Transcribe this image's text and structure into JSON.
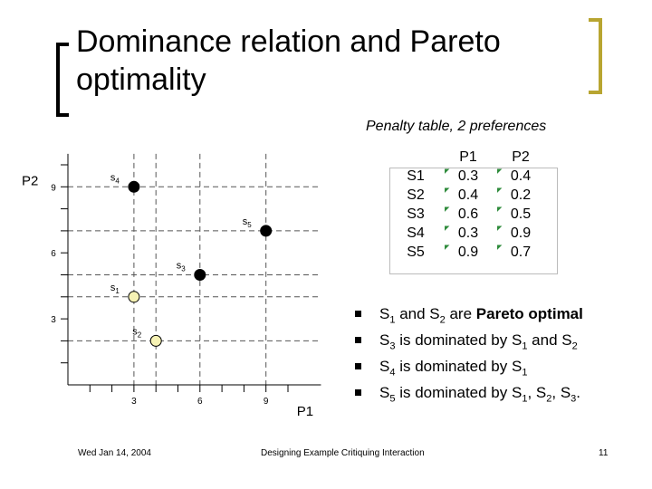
{
  "slide": {
    "title": "Dominance relation and Pareto optimality",
    "subtitle": "Penalty table, 2 preferences",
    "footer_date": "Wed Jan 14, 2004",
    "footer_center": "Designing Example Critiquing Interaction",
    "page_number": "11"
  },
  "penalty_table": {
    "headers": [
      "",
      "P1",
      "P2"
    ],
    "rows": [
      {
        "label": "S1",
        "p1": "0.3",
        "p2": "0.4"
      },
      {
        "label": "S2",
        "p1": "0.4",
        "p2": "0.2"
      },
      {
        "label": "S3",
        "p1": "0.6",
        "p2": "0.5"
      },
      {
        "label": "S4",
        "p1": "0.3",
        "p2": "0.9"
      },
      {
        "label": "S5",
        "p1": "0.9",
        "p2": "0.7"
      }
    ]
  },
  "bullets": [
    [
      {
        "t": "S"
      },
      {
        "t": "1",
        "sub": true
      },
      {
        "t": " and S"
      },
      {
        "t": "2",
        "sub": true
      },
      {
        "t": " are "
      },
      {
        "t": "Pareto optimal",
        "bold": true
      }
    ],
    [
      {
        "t": "S"
      },
      {
        "t": "3",
        "sub": true
      },
      {
        "t": " is dominated by S"
      },
      {
        "t": "1",
        "sub": true
      },
      {
        "t": " and S"
      },
      {
        "t": "2",
        "sub": true
      }
    ],
    [
      {
        "t": "S"
      },
      {
        "t": "4",
        "sub": true
      },
      {
        "t": " is dominated by S"
      },
      {
        "t": "1",
        "sub": true
      }
    ],
    [
      {
        "t": "S"
      },
      {
        "t": "5",
        "sub": true
      },
      {
        "t": " is dominated by S"
      },
      {
        "t": "1",
        "sub": true
      },
      {
        "t": ", S"
      },
      {
        "t": "2",
        "sub": true
      },
      {
        "t": ", S"
      },
      {
        "t": "3",
        "sub": true
      },
      {
        "t": "."
      }
    ]
  ],
  "chart_data": {
    "type": "scatter",
    "xlabel": "P1",
    "ylabel": "P2",
    "x_ticks": [
      "3",
      "6",
      "9"
    ],
    "y_ticks": [
      "3",
      "6",
      "9"
    ],
    "points": [
      {
        "name": "S1",
        "x": 3,
        "y": 4,
        "color": "#f6f2b4"
      },
      {
        "name": "S2",
        "x": 4,
        "y": 2,
        "color": "#f6f2b4"
      },
      {
        "name": "S3",
        "x": 6,
        "y": 5,
        "color": "#000000"
      },
      {
        "name": "S4",
        "x": 3,
        "y": 9,
        "color": "#000000"
      },
      {
        "name": "S5",
        "x": 9,
        "y": 7,
        "color": "#000000"
      }
    ]
  }
}
